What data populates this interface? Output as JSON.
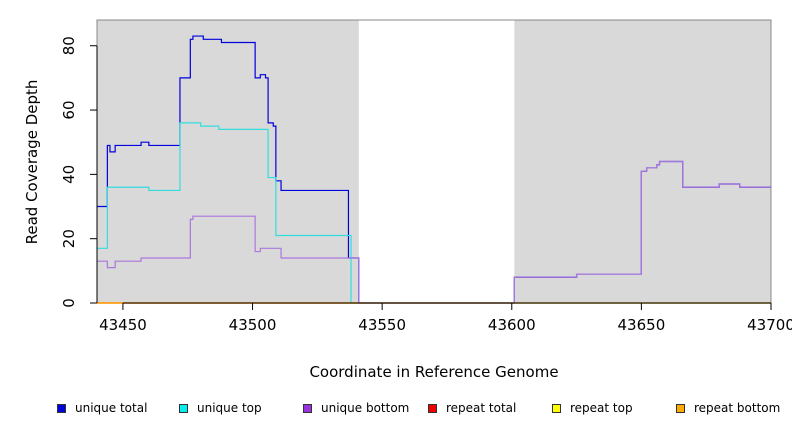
{
  "chart_data": {
    "type": "line",
    "title": "",
    "xlabel": "Coordinate in Reference Genome",
    "ylabel": "Read Coverage Depth",
    "xlim": [
      43440,
      43700
    ],
    "ylim": [
      0,
      88
    ],
    "xticks": [
      43450,
      43500,
      43550,
      43600,
      43650,
      43700
    ],
    "yticks": [
      0,
      20,
      40,
      60,
      80
    ],
    "shaded_regions": [
      [
        43440,
        43541
      ],
      [
        43601,
        43700
      ]
    ],
    "step_style": "post",
    "series": [
      {
        "name": "unique total",
        "color": "#0000dd",
        "x": [
          43440,
          43443,
          43444,
          43445,
          43447,
          43457,
          43460,
          43472,
          43476,
          43477,
          43481,
          43488,
          43501,
          43503,
          43505,
          43506,
          43508,
          43509,
          43511,
          43537,
          43541,
          43600,
          43601,
          43625,
          43650,
          43652,
          43655,
          43656,
          43657,
          43666,
          43680,
          43688,
          43700
        ],
        "y": [
          30,
          30,
          49,
          47,
          49,
          50,
          49,
          70,
          82,
          83,
          82,
          81,
          70,
          71,
          70,
          56,
          55,
          38,
          35,
          14,
          0,
          0,
          8,
          9,
          41,
          42,
          42,
          43,
          44,
          36,
          37,
          36,
          36
        ]
      },
      {
        "name": "unique top",
        "color": "#33dddd",
        "x": [
          43440,
          43443,
          43444,
          43460,
          43472,
          43480,
          43487,
          43506,
          43509,
          43537,
          43538,
          43601,
          43700
        ],
        "y": [
          17,
          17,
          36,
          35,
          56,
          55,
          54,
          39,
          21,
          21,
          0,
          0,
          0
        ]
      },
      {
        "name": "unique bottom",
        "color": "#aa77dd",
        "x": [
          43440,
          43444,
          43447,
          43457,
          43476,
          43477,
          43501,
          43503,
          43511,
          43537,
          43541,
          43600,
          43601,
          43625,
          43650,
          43652,
          43655,
          43656,
          43657,
          43666,
          43680,
          43688,
          43700
        ],
        "y": [
          13,
          11,
          13,
          14,
          26,
          27,
          16,
          17,
          14,
          14,
          0,
          0,
          8,
          9,
          41,
          42,
          42,
          43,
          44,
          36,
          37,
          36,
          36
        ]
      },
      {
        "name": "repeat total",
        "color": "#ff0000",
        "x": [
          43440,
          43700
        ],
        "y": [
          0,
          0
        ]
      },
      {
        "name": "repeat top",
        "color": "#ffff00",
        "x": [
          43440,
          43700
        ],
        "y": [
          0,
          0
        ]
      },
      {
        "name": "repeat bottom",
        "color": "#ff9900",
        "x": [
          43440,
          43541
        ],
        "y": [
          0,
          0
        ]
      }
    ],
    "legend": [
      {
        "name": "unique total",
        "color": "#0000dd"
      },
      {
        "name": "unique top",
        "color": "#00eeee"
      },
      {
        "name": "unique bottom",
        "color": "#9933dd"
      },
      {
        "name": "repeat total",
        "color": "#ee0000"
      },
      {
        "name": "repeat top",
        "color": "#ffff00"
      },
      {
        "name": "repeat bottom",
        "color": "#ffaa00"
      }
    ],
    "legend_placement": "bottom"
  }
}
